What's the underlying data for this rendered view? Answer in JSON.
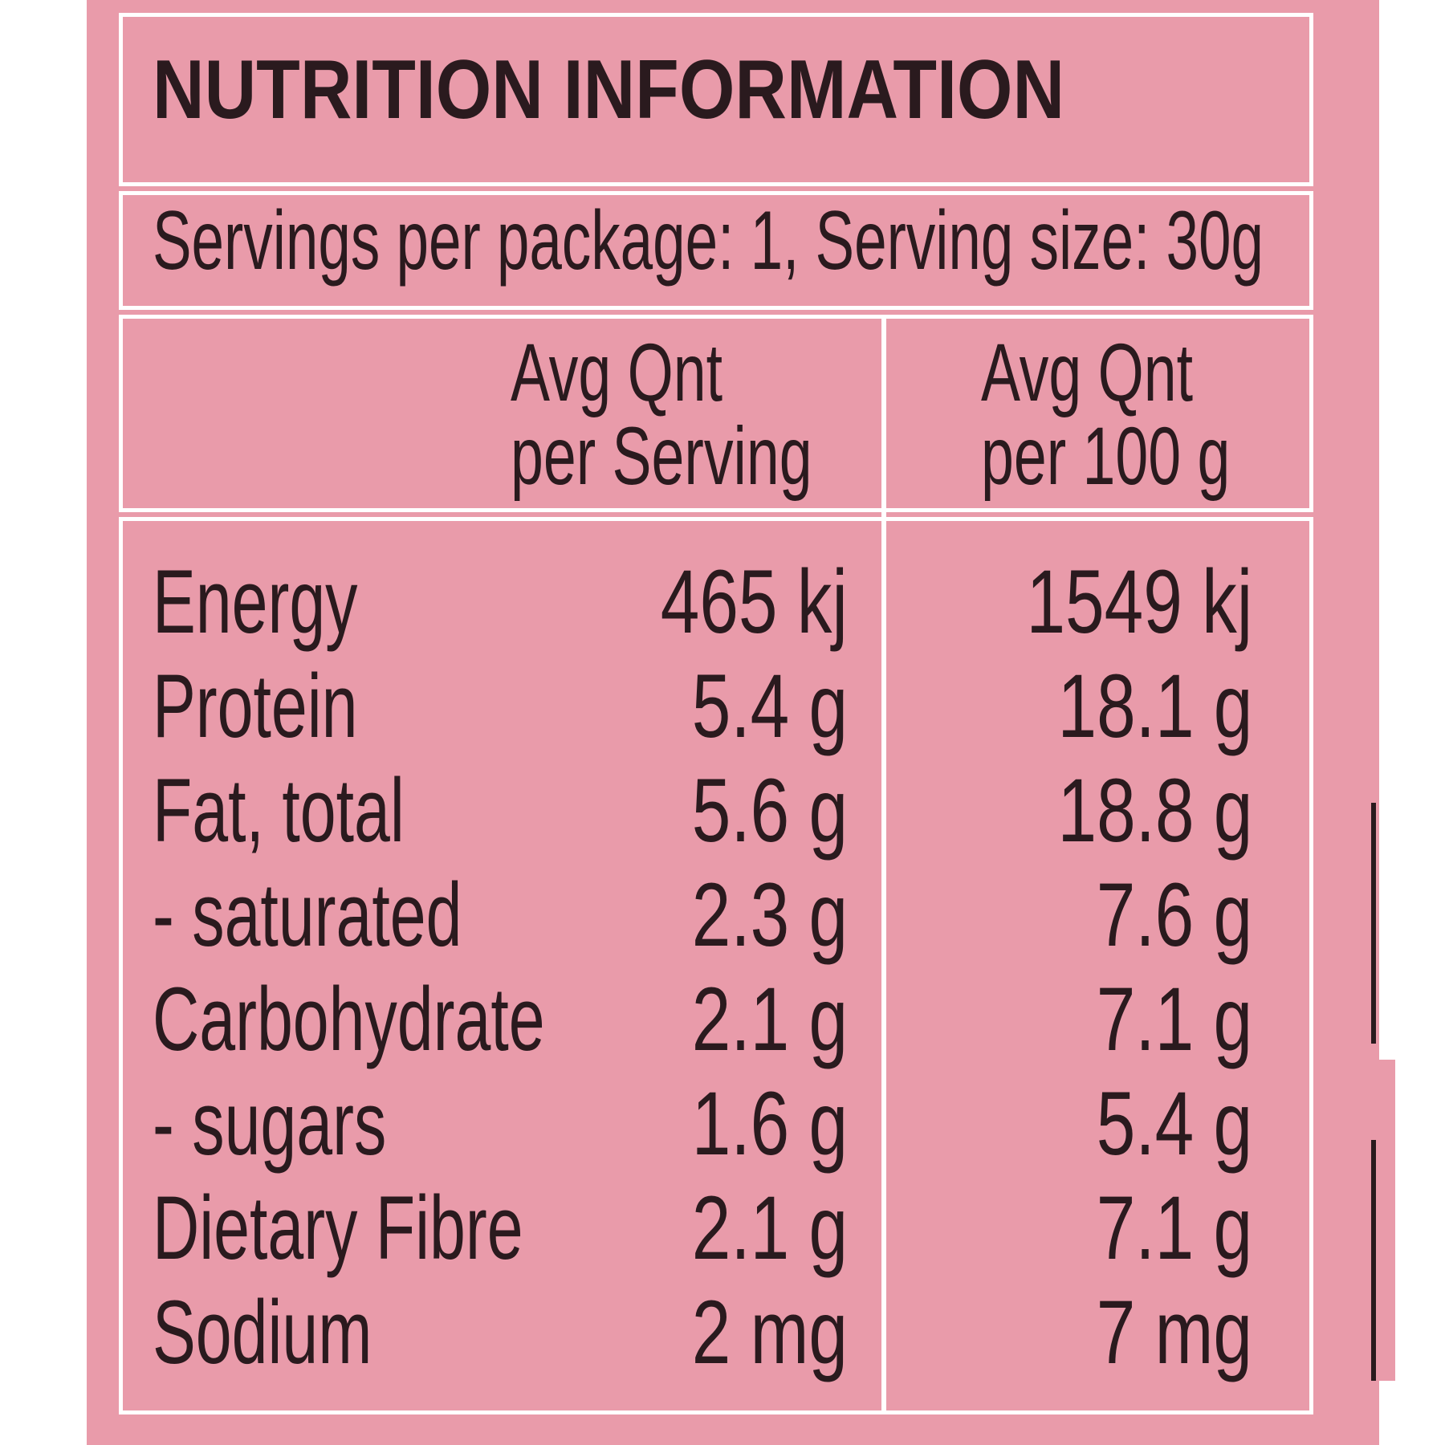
{
  "title": "NUTRITION INFORMATION",
  "serving_info": "Servings per package: 1, Serving size:  30g",
  "columns": [
    {
      "line1": "Avg Qnt",
      "line2": "per Serving"
    },
    {
      "line1": "Avg Qnt",
      "line2": "per 100 g"
    }
  ],
  "rows": [
    {
      "label": "Energy",
      "per_serving": "465 kj",
      "per_100g": "1549 kj"
    },
    {
      "label": "Protein",
      "per_serving": "5.4 g",
      "per_100g": "18.1 g"
    },
    {
      "label": "Fat, total",
      "per_serving": "5.6 g",
      "per_100g": "18.8 g"
    },
    {
      "label": "- saturated",
      "per_serving": "2.3 g",
      "per_100g": "7.6 g"
    },
    {
      "label": "Carbohydrate",
      "per_serving": "2.1 g",
      "per_100g": "7.1 g"
    },
    {
      "label": "- sugars",
      "per_serving": "1.6 g",
      "per_100g": "5.4 g"
    },
    {
      "label": "Dietary Fibre",
      "per_serving": "2.1 g",
      "per_100g": "7.1 g"
    },
    {
      "label": "Sodium",
      "per_serving": "2 mg",
      "per_100g": "7 mg"
    }
  ],
  "colors": {
    "panel": "#e99baa",
    "border": "#ffffff",
    "text": "#2a1a1e"
  }
}
